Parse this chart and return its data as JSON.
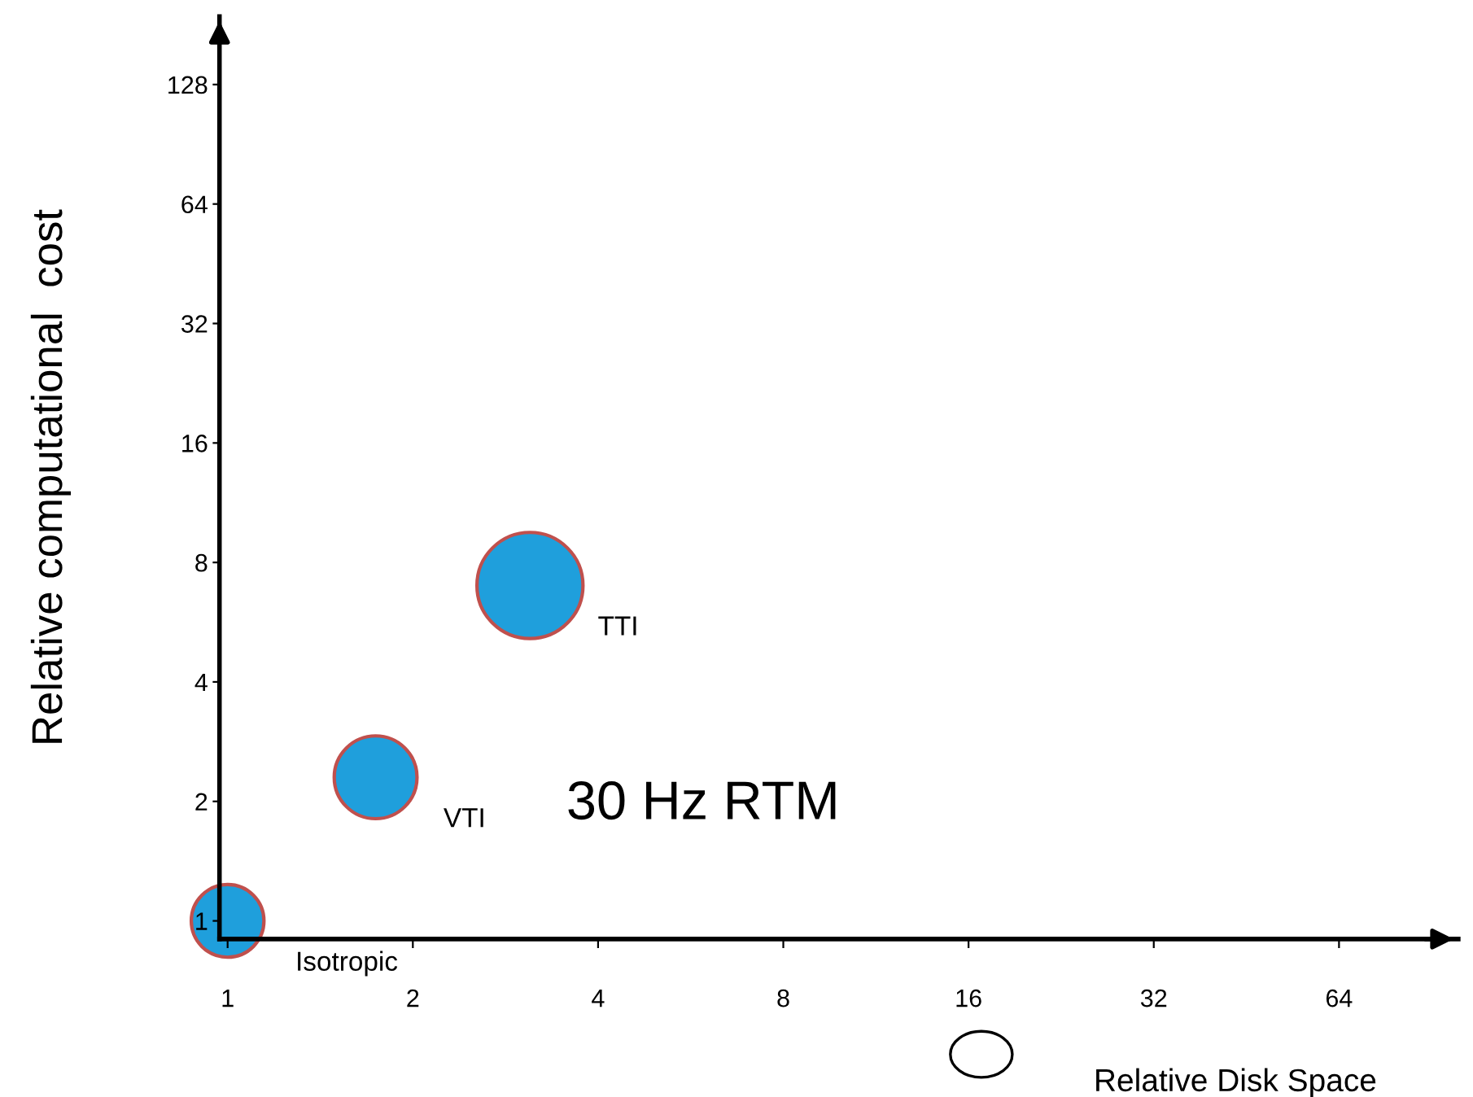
{
  "chart_data": {
    "type": "bubble",
    "xlabel": "Relative Disk Space",
    "ylabel": "Relative computational  cost",
    "x": [
      1,
      1.74,
      3.1
    ],
    "values": [
      1,
      2.3,
      7
    ],
    "sizes": [
      0.47,
      0.61,
      1
    ],
    "color": "#1f9fdc",
    "log": "xy",
    "xlim": [
      0.97,
      100
    ],
    "ylim": [
      0.9,
      190
    ],
    "xticks": [
      1,
      2,
      4,
      8,
      16,
      32,
      64
    ],
    "yticks": [
      1,
      2,
      4,
      8,
      16,
      32,
      64,
      128
    ],
    "grid": false,
    "annotations": [
      {
        "text": "Isotropic",
        "x": 1,
        "y": 1
      },
      {
        "text": "VTI",
        "x": 1.74,
        "y": 2.3
      },
      {
        "text": "TTI",
        "x": 3.1,
        "y": 7
      },
      "30 Hz RTM"
    ]
  }
}
